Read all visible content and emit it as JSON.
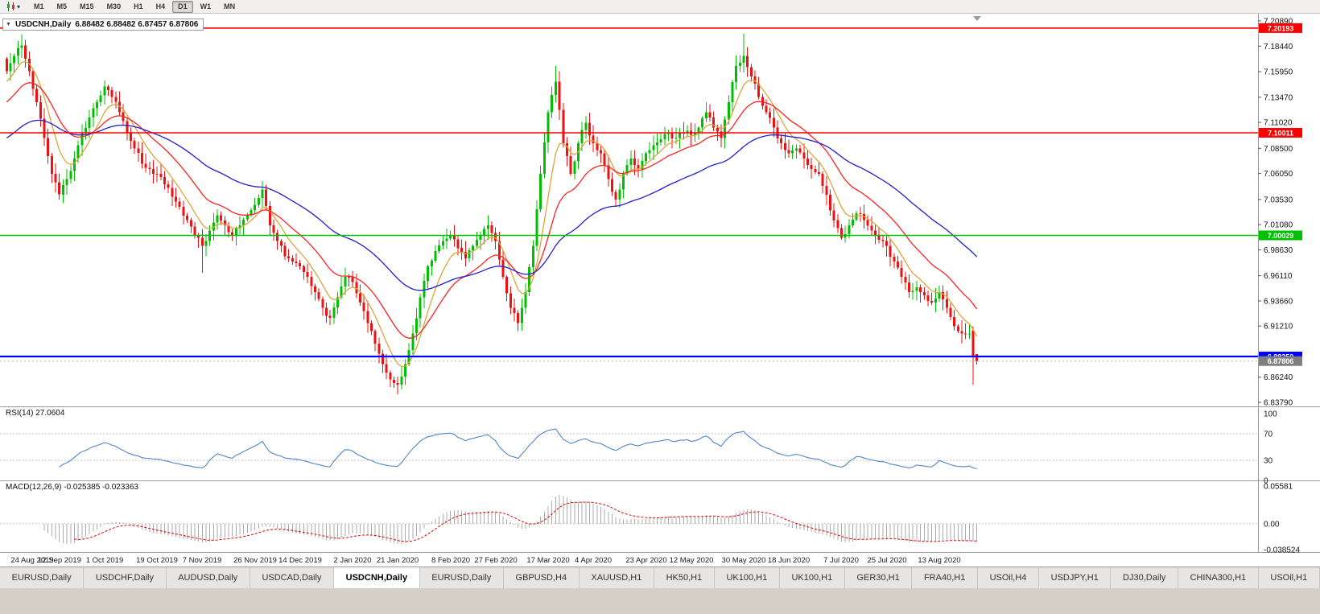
{
  "toolbar": {
    "timeframes": [
      "M1",
      "M5",
      "M15",
      "M30",
      "H1",
      "H4",
      "D1",
      "W1",
      "MN"
    ],
    "active_timeframe": "D1"
  },
  "chart_header": {
    "arrow": "▼",
    "title": "USDCNH,Daily",
    "ohlc": "6.88482 6.88482 6.87457 6.87806"
  },
  "indicators": {
    "rsi": {
      "label": "RSI(14)",
      "value": "27.0604",
      "ticks": [
        {
          "label": "100",
          "value": 100
        },
        {
          "label": "70",
          "value": 70
        },
        {
          "label": "30",
          "value": 30
        },
        {
          "label": "0",
          "value": 0
        }
      ],
      "levels": [
        70,
        30
      ],
      "color": "#4f86c6"
    },
    "macd": {
      "label": "MACD(12,26,9)",
      "value": "-0.025385 -0.023363",
      "ticks": [
        {
          "label": "0.05581",
          "value": 0.05581
        },
        {
          "label": "0.00",
          "value": 0
        },
        {
          "label": "-0.038524",
          "value": -0.038524
        }
      ],
      "histogram_color": "#ababab",
      "signal_color": "#e00000"
    }
  },
  "price_axis": {
    "ticks": [
      {
        "label": "7.20890",
        "value": 7.2089
      },
      {
        "label": "7.18440",
        "value": 7.1844
      },
      {
        "label": "7.15950",
        "value": 7.1595
      },
      {
        "label": "7.13470",
        "value": 7.1347
      },
      {
        "label": "7.11020",
        "value": 7.1102
      },
      {
        "label": "7.08500",
        "value": 7.085
      },
      {
        "label": "7.06050",
        "value": 7.0605
      },
      {
        "label": "7.03530",
        "value": 7.0353
      },
      {
        "label": "7.01080",
        "value": 7.0108
      },
      {
        "label": "6.98630",
        "value": 6.9863
      },
      {
        "label": "6.96110",
        "value": 6.9611
      },
      {
        "label": "6.93660",
        "value": 6.9366
      },
      {
        "label": "6.91210",
        "value": 6.9121
      },
      {
        "label": "6.86240",
        "value": 6.8624
      },
      {
        "label": "6.83790",
        "value": 6.8379
      }
    ]
  },
  "x_axis": {
    "labels": [
      {
        "text": "24 Aug 2019",
        "i": 0
      },
      {
        "text": "12 Sep 2019",
        "i": 7
      },
      {
        "text": "1 Oct 2019",
        "i": 13
      },
      {
        "text": "19 Oct 2019",
        "i": 20
      },
      {
        "text": "7 Nov 2019",
        "i": 26
      },
      {
        "text": "26 Nov 2019",
        "i": 33
      },
      {
        "text": "14 Dec 2019",
        "i": 39
      },
      {
        "text": "2 Jan 2020",
        "i": 46
      },
      {
        "text": "21 Jan 2020",
        "i": 52
      },
      {
        "text": "8 Feb 2020",
        "i": 59
      },
      {
        "text": "27 Feb 2020",
        "i": 65
      },
      {
        "text": "17 Mar 2020",
        "i": 72
      },
      {
        "text": "4 Apr 2020",
        "i": 78
      },
      {
        "text": "23 Apr 2020",
        "i": 85
      },
      {
        "text": "12 May 2020",
        "i": 91
      },
      {
        "text": "30 May 2020",
        "i": 98
      },
      {
        "text": "18 Jun 2020",
        "i": 104
      },
      {
        "text": "7 Jul 2020",
        "i": 111
      },
      {
        "text": "25 Jul 2020",
        "i": 117
      },
      {
        "text": "13 Aug 2020",
        "i": 124
      }
    ]
  },
  "chart_data": {
    "type": "candlestick",
    "symbol": "USDCNH",
    "period": "Daily",
    "ylim": [
      6.8379,
      7.2089
    ],
    "up_color": "#00bf00",
    "down_color": "#ee1111",
    "closes": [
      7.16,
      7.175,
      7.185,
      7.16,
      7.13,
      7.095,
      7.06,
      7.04,
      7.055,
      7.075,
      7.1,
      7.115,
      7.13,
      7.145,
      7.135,
      7.12,
      7.1,
      7.085,
      7.07,
      7.065,
      7.06,
      7.05,
      7.038,
      7.028,
      7.015,
      7.0,
      6.99,
      7.005,
      7.02,
      7.01,
      7.0,
      7.01,
      7.02,
      7.03,
      7.045,
      7.01,
      6.995,
      6.98,
      6.975,
      6.97,
      6.96,
      6.945,
      6.93,
      6.92,
      6.94,
      6.96,
      6.955,
      6.935,
      6.915,
      6.895,
      6.875,
      6.86,
      6.855,
      6.875,
      6.905,
      6.94,
      6.97,
      6.985,
      6.995,
      7.0,
      6.988,
      6.978,
      6.99,
      7.0,
      7.01,
      6.995,
      6.96,
      6.93,
      6.915,
      6.945,
      6.99,
      7.06,
      7.12,
      7.15,
      7.09,
      7.06,
      7.09,
      7.11,
      7.09,
      7.08,
      7.055,
      7.035,
      7.06,
      7.075,
      7.065,
      7.08,
      7.088,
      7.094,
      7.1,
      7.095,
      7.1,
      7.098,
      7.105,
      7.12,
      7.105,
      7.095,
      7.13,
      7.165,
      7.175,
      7.155,
      7.135,
      7.12,
      7.105,
      7.09,
      7.08,
      7.085,
      7.075,
      7.065,
      7.06,
      7.04,
      7.015,
      6.998,
      7.01,
      7.022,
      7.015,
      7.005,
      6.996,
      6.99,
      6.975,
      6.96,
      6.945,
      6.95,
      6.942,
      6.935,
      6.945,
      6.93,
      6.912,
      6.905,
      6.905,
      6.878
    ],
    "wick_overrides": {
      "2": {
        "h": 7.196
      },
      "26": {
        "l": 6.964
      },
      "34": {
        "h": 7.053
      },
      "52": {
        "l": 6.8457
      },
      "73": {
        "h": 7.165
      },
      "98": {
        "h": 7.1965
      }
    },
    "last_candles": [
      [
        6.908,
        6.912,
        6.855,
        6.883
      ],
      [
        6.88482,
        6.88482,
        6.87457,
        6.87806
      ]
    ],
    "ma": [
      {
        "period": 8,
        "color": "#dba53a",
        "seed_offset": 0.01
      },
      {
        "period": 21,
        "color": "#ff2222",
        "seed_offset": 0.03
      },
      {
        "period": 55,
        "color": "#1f1fd0",
        "seed_offset": 0.065
      }
    ],
    "hlines": [
      {
        "value": 7.20193,
        "label": "7.20193",
        "color": "#ff0000",
        "width": 1.6
      },
      {
        "value": 7.10011,
        "label": "7.10011",
        "color": "#ff0000",
        "width": 1.6
      },
      {
        "value": 7.00029,
        "label": "7.00029",
        "color": "#00c000",
        "width": 1.6
      },
      {
        "value": 6.8825,
        "label": "6.88250",
        "color": "#0000ff",
        "width": 2.2
      }
    ],
    "current_price": {
      "value": 6.87806,
      "label": "6.87806",
      "color": "#7f7f7f"
    }
  },
  "tabs": [
    {
      "label": "EURUSD,Daily",
      "active": false
    },
    {
      "label": "USDCHF,Daily",
      "active": false
    },
    {
      "label": "AUDUSD,Daily",
      "active": false
    },
    {
      "label": "USDCAD,Daily",
      "active": false
    },
    {
      "label": "USDCNH,Daily",
      "active": true
    },
    {
      "label": "EURUSD,Daily",
      "active": false
    },
    {
      "label": "GBPUSD,H4",
      "active": false
    },
    {
      "label": "XAUUSD,H1",
      "active": false
    },
    {
      "label": "HK50,H1",
      "active": false
    },
    {
      "label": "UK100,H1",
      "active": false
    },
    {
      "label": "UK100,H1",
      "active": false
    },
    {
      "label": "GER30,H1",
      "active": false
    },
    {
      "label": "FRA40,H1",
      "active": false
    },
    {
      "label": "USOil,H4",
      "active": false
    },
    {
      "label": "USDJPY,H1",
      "active": false
    },
    {
      "label": "DJ30,Daily",
      "active": false
    },
    {
      "label": "CHINA300,H1",
      "active": false
    },
    {
      "label": "USOil,H1",
      "active": false
    }
  ]
}
